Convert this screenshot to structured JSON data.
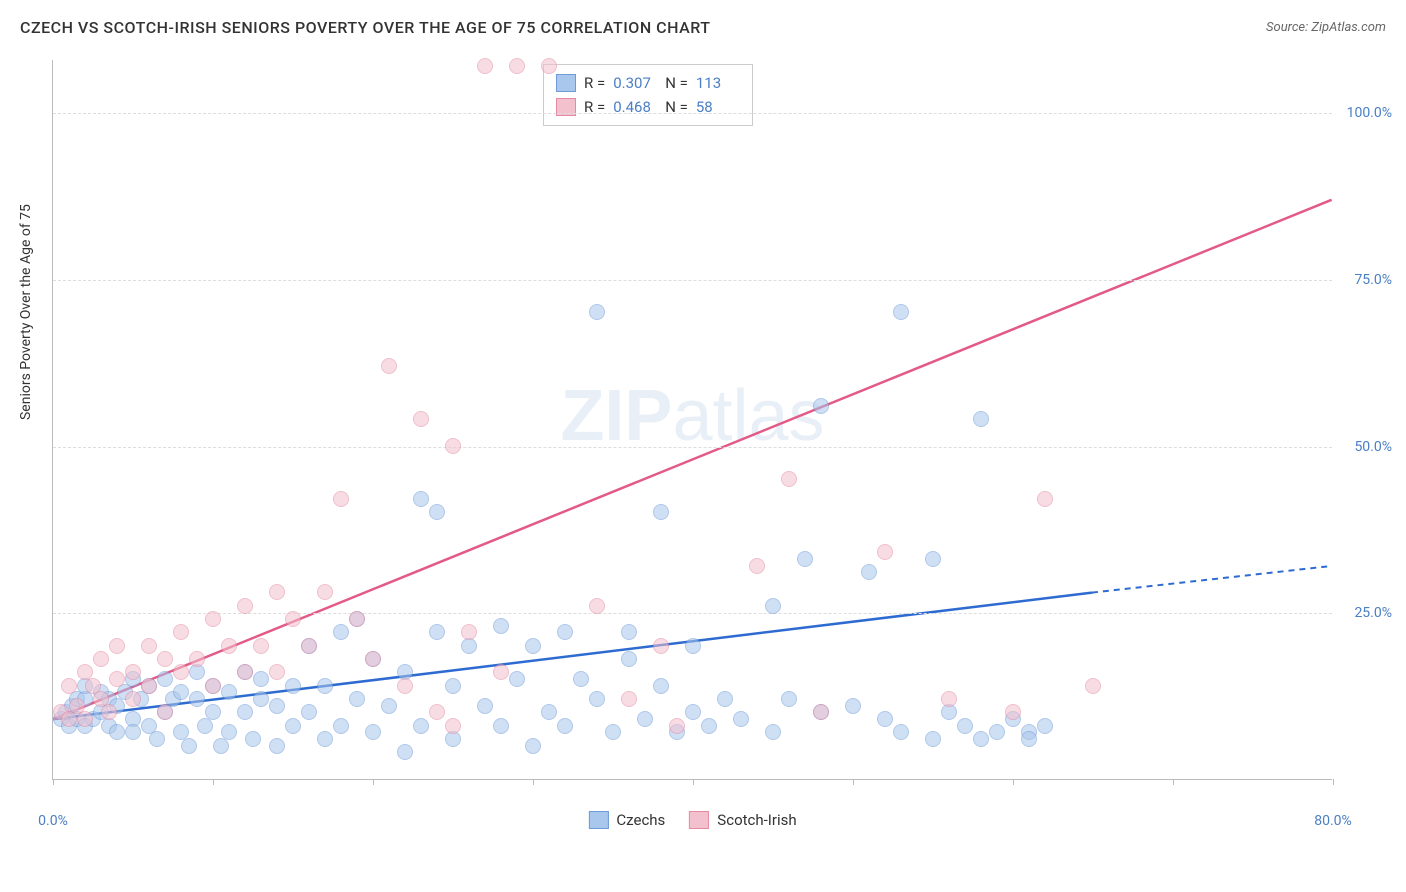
{
  "title": "CZECH VS SCOTCH-IRISH SENIORS POVERTY OVER THE AGE OF 75 CORRELATION CHART",
  "source": "Source: ZipAtlas.com",
  "y_axis_label": "Seniors Poverty Over the Age of 75",
  "watermark": {
    "zip": "ZIP",
    "atlas": "atlas"
  },
  "chart": {
    "type": "scatter",
    "xlim": [
      0,
      80
    ],
    "ylim": [
      0,
      108
    ],
    "x_ticks": [
      0,
      10,
      20,
      30,
      40,
      50,
      60,
      70,
      80
    ],
    "y_ticks": [
      25,
      50,
      75,
      100
    ],
    "x_tick_labels": {
      "0": "0.0%",
      "80": "80.0%"
    },
    "y_tick_labels": {
      "25": "25.0%",
      "50": "50.0%",
      "75": "75.0%",
      "100": "100.0%"
    },
    "background_color": "#ffffff",
    "grid_color": "#dddddd",
    "axis_color": "#bbbbbb",
    "tick_label_color": "#4a7fc4",
    "point_radius": 8,
    "point_opacity": 0.55,
    "series": [
      {
        "name": "Czechs",
        "fill_color": "#a9c6ec",
        "stroke_color": "#6f9cd8",
        "line_color": "#2e6bd1",
        "R": "0.307",
        "N": "113",
        "trend": {
          "x1": 0,
          "y1": 9,
          "x2": 65,
          "y2": 28,
          "dash_to_x": 80,
          "dash_to_y": 32
        },
        "points": [
          [
            0.5,
            9
          ],
          [
            0.8,
            10
          ],
          [
            1,
            8
          ],
          [
            1.2,
            11
          ],
          [
            1.5,
            9
          ],
          [
            1.5,
            12
          ],
          [
            2,
            8
          ],
          [
            2,
            12
          ],
          [
            2,
            14
          ],
          [
            2.5,
            9
          ],
          [
            3,
            10
          ],
          [
            3,
            13
          ],
          [
            3.5,
            8
          ],
          [
            3.5,
            12
          ],
          [
            4,
            7
          ],
          [
            4,
            11
          ],
          [
            4.5,
            13
          ],
          [
            5,
            9
          ],
          [
            5,
            15
          ],
          [
            5,
            7
          ],
          [
            5.5,
            12
          ],
          [
            6,
            8
          ],
          [
            6,
            14
          ],
          [
            6.5,
            6
          ],
          [
            7,
            10
          ],
          [
            7,
            15
          ],
          [
            7.5,
            12
          ],
          [
            8,
            7
          ],
          [
            8,
            13
          ],
          [
            8.5,
            5
          ],
          [
            9,
            12
          ],
          [
            9,
            16
          ],
          [
            9.5,
            8
          ],
          [
            10,
            14
          ],
          [
            10,
            10
          ],
          [
            10.5,
            5
          ],
          [
            11,
            13
          ],
          [
            11,
            7
          ],
          [
            12,
            16
          ],
          [
            12,
            10
          ],
          [
            12.5,
            6
          ],
          [
            13,
            12
          ],
          [
            13,
            15
          ],
          [
            14,
            5
          ],
          [
            14,
            11
          ],
          [
            15,
            8
          ],
          [
            15,
            14
          ],
          [
            16,
            20
          ],
          [
            16,
            10
          ],
          [
            17,
            6
          ],
          [
            17,
            14
          ],
          [
            18,
            22
          ],
          [
            18,
            8
          ],
          [
            19,
            24
          ],
          [
            19,
            12
          ],
          [
            20,
            7
          ],
          [
            20,
            18
          ],
          [
            21,
            11
          ],
          [
            22,
            4
          ],
          [
            22,
            16
          ],
          [
            23,
            42
          ],
          [
            23,
            8
          ],
          [
            24,
            22
          ],
          [
            24,
            40
          ],
          [
            25,
            14
          ],
          [
            25,
            6
          ],
          [
            26,
            20
          ],
          [
            27,
            11
          ],
          [
            28,
            8
          ],
          [
            28,
            23
          ],
          [
            29,
            15
          ],
          [
            30,
            5
          ],
          [
            30,
            20
          ],
          [
            31,
            10
          ],
          [
            32,
            22
          ],
          [
            32,
            8
          ],
          [
            33,
            15
          ],
          [
            34,
            70
          ],
          [
            34,
            12
          ],
          [
            35,
            7
          ],
          [
            36,
            18
          ],
          [
            36,
            22
          ],
          [
            37,
            9
          ],
          [
            38,
            40
          ],
          [
            38,
            14
          ],
          [
            39,
            7
          ],
          [
            40,
            10
          ],
          [
            40,
            20
          ],
          [
            41,
            8
          ],
          [
            42,
            12
          ],
          [
            43,
            9
          ],
          [
            45,
            7
          ],
          [
            45,
            26
          ],
          [
            46,
            12
          ],
          [
            47,
            33
          ],
          [
            48,
            10
          ],
          [
            48,
            56
          ],
          [
            50,
            11
          ],
          [
            51,
            31
          ],
          [
            52,
            9
          ],
          [
            53,
            7
          ],
          [
            53,
            70
          ],
          [
            55,
            6
          ],
          [
            55,
            33
          ],
          [
            56,
            10
          ],
          [
            57,
            8
          ],
          [
            58,
            6
          ],
          [
            58,
            54
          ],
          [
            59,
            7
          ],
          [
            60,
            9
          ],
          [
            61,
            7
          ],
          [
            61,
            6
          ],
          [
            62,
            8
          ]
        ]
      },
      {
        "name": "Scotch-Irish",
        "fill_color": "#f3c1cd",
        "stroke_color": "#e68aa3",
        "line_color": "#e35a86",
        "R": "0.468",
        "N": "58",
        "trend": {
          "x1": 0,
          "y1": 9,
          "x2": 80,
          "y2": 87
        },
        "points": [
          [
            0.5,
            10
          ],
          [
            1,
            9
          ],
          [
            1,
            14
          ],
          [
            1.5,
            11
          ],
          [
            2,
            16
          ],
          [
            2,
            9
          ],
          [
            2.5,
            14
          ],
          [
            3,
            12
          ],
          [
            3,
            18
          ],
          [
            3.5,
            10
          ],
          [
            4,
            15
          ],
          [
            4,
            20
          ],
          [
            5,
            16
          ],
          [
            5,
            12
          ],
          [
            6,
            20
          ],
          [
            6,
            14
          ],
          [
            7,
            18
          ],
          [
            7,
            10
          ],
          [
            8,
            22
          ],
          [
            8,
            16
          ],
          [
            9,
            18
          ],
          [
            10,
            24
          ],
          [
            10,
            14
          ],
          [
            11,
            20
          ],
          [
            12,
            16
          ],
          [
            12,
            26
          ],
          [
            13,
            20
          ],
          [
            14,
            28
          ],
          [
            14,
            16
          ],
          [
            15,
            24
          ],
          [
            16,
            20
          ],
          [
            17,
            28
          ],
          [
            18,
            42
          ],
          [
            19,
            24
          ],
          [
            20,
            18
          ],
          [
            21,
            62
          ],
          [
            22,
            14
          ],
          [
            23,
            54
          ],
          [
            24,
            10
          ],
          [
            25,
            8
          ],
          [
            25,
            50
          ],
          [
            26,
            22
          ],
          [
            27,
            107
          ],
          [
            28,
            16
          ],
          [
            29,
            107
          ],
          [
            31,
            107
          ],
          [
            34,
            26
          ],
          [
            36,
            12
          ],
          [
            38,
            20
          ],
          [
            39,
            8
          ],
          [
            44,
            32
          ],
          [
            46,
            45
          ],
          [
            48,
            10
          ],
          [
            52,
            34
          ],
          [
            56,
            12
          ],
          [
            60,
            10
          ],
          [
            62,
            42
          ],
          [
            65,
            14
          ]
        ]
      }
    ],
    "legend_bottom": [
      {
        "label": "Czechs",
        "fill": "#a9c6ec",
        "stroke": "#6f9cd8"
      },
      {
        "label": "Scotch-Irish",
        "fill": "#f3c1cd",
        "stroke": "#e68aa3"
      }
    ]
  }
}
